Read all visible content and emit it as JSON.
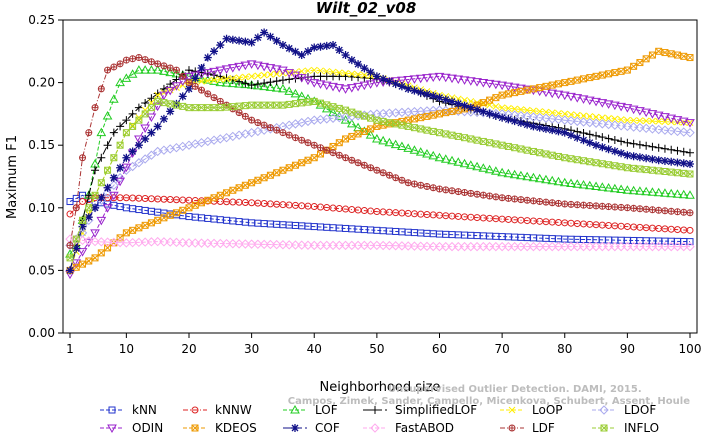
{
  "chart_data": {
    "type": "line",
    "title": "Wilt_02_v08",
    "xlabel": "Neighborhood size",
    "ylabel": "Maximum F1",
    "xlim": [
      1,
      100
    ],
    "ylim": [
      0,
      0.25
    ],
    "x_ticks": [
      "1",
      "10",
      "20",
      "30",
      "40",
      "50",
      "60",
      "70",
      "80",
      "90",
      "100"
    ],
    "y_ticks": [
      "0.00",
      "0.05",
      "0.10",
      "0.15",
      "0.20",
      "0.25"
    ],
    "legend_position": "bottom",
    "watermark": [
      "Unsupervised Outlier Detection. DAMI, 2015.",
      "Campos, Zimek, Sander, Campello, Micenkova, Schubert, Assent, Houle"
    ],
    "series": [
      {
        "name": "kNN",
        "color": "#2233cc",
        "marker": "square",
        "line": "dash",
        "x": [
          1,
          3,
          5,
          10,
          20,
          30,
          40,
          50,
          60,
          70,
          80,
          90,
          100
        ],
        "values": [
          0.105,
          0.11,
          0.105,
          0.1,
          0.093,
          0.088,
          0.085,
          0.082,
          0.079,
          0.077,
          0.075,
          0.074,
          0.073
        ]
      },
      {
        "name": "kNNW",
        "color": "#dd2222",
        "marker": "circle",
        "line": "dashdot",
        "x": [
          1,
          3,
          5,
          10,
          20,
          30,
          40,
          50,
          60,
          70,
          80,
          90,
          100
        ],
        "values": [
          0.095,
          0.105,
          0.108,
          0.108,
          0.106,
          0.104,
          0.101,
          0.097,
          0.094,
          0.091,
          0.088,
          0.085,
          0.082
        ]
      },
      {
        "name": "LOF",
        "color": "#22cc22",
        "marker": "triangle",
        "line": "dash",
        "x": [
          1,
          2,
          4,
          6,
          9,
          12,
          15,
          20,
          25,
          30,
          35,
          40,
          45,
          50,
          60,
          70,
          80,
          90,
          100
        ],
        "values": [
          0.063,
          0.07,
          0.11,
          0.16,
          0.2,
          0.21,
          0.21,
          0.205,
          0.2,
          0.198,
          0.195,
          0.185,
          0.17,
          0.155,
          0.14,
          0.128,
          0.12,
          0.114,
          0.11
        ]
      },
      {
        "name": "SimplifiedLOF",
        "color": "#000000",
        "marker": "plus",
        "line": "longdash",
        "x": [
          1,
          3,
          5,
          8,
          12,
          16,
          20,
          25,
          30,
          35,
          40,
          45,
          50,
          55,
          60,
          70,
          80,
          90,
          100
        ],
        "values": [
          0.05,
          0.09,
          0.13,
          0.16,
          0.18,
          0.195,
          0.21,
          0.205,
          0.198,
          0.202,
          0.205,
          0.205,
          0.203,
          0.196,
          0.185,
          0.172,
          0.163,
          0.152,
          0.144
        ]
      },
      {
        "name": "LoOP",
        "color": "#ffee00",
        "marker": "x",
        "line": "dash",
        "x": [
          1,
          3,
          5,
          10,
          15,
          20,
          30,
          40,
          50,
          60,
          70,
          80,
          90,
          100
        ],
        "values": [
          0.05,
          0.08,
          0.11,
          0.16,
          0.19,
          0.2,
          0.205,
          0.21,
          0.205,
          0.19,
          0.18,
          0.175,
          0.17,
          0.168
        ]
      },
      {
        "name": "LDOF",
        "color": "#aaaaee",
        "marker": "diamond",
        "line": "dash",
        "x": [
          1,
          3,
          5,
          10,
          15,
          20,
          25,
          30,
          35,
          40,
          50,
          60,
          70,
          80,
          90,
          100
        ],
        "values": [
          0.07,
          0.08,
          0.1,
          0.13,
          0.145,
          0.15,
          0.155,
          0.16,
          0.165,
          0.17,
          0.175,
          0.178,
          0.175,
          0.17,
          0.165,
          0.16
        ]
      },
      {
        "name": "ODIN",
        "color": "#9922cc",
        "marker": "triangledown",
        "line": "dash",
        "x": [
          1,
          3,
          5,
          8,
          12,
          16,
          20,
          25,
          30,
          35,
          40,
          45,
          50,
          60,
          70,
          80,
          90,
          100
        ],
        "values": [
          0.047,
          0.065,
          0.08,
          0.11,
          0.155,
          0.19,
          0.205,
          0.21,
          0.215,
          0.21,
          0.2,
          0.195,
          0.2,
          0.205,
          0.198,
          0.19,
          0.18,
          0.168
        ]
      },
      {
        "name": "KDEOS",
        "color": "#ee9900",
        "marker": "squarex",
        "line": "dash",
        "x": [
          1,
          3,
          5,
          10,
          15,
          20,
          25,
          30,
          35,
          40,
          45,
          50,
          55,
          60,
          65,
          70,
          75,
          80,
          85,
          90,
          95,
          100
        ],
        "values": [
          0.05,
          0.055,
          0.06,
          0.08,
          0.09,
          0.1,
          0.11,
          0.12,
          0.13,
          0.14,
          0.155,
          0.165,
          0.17,
          0.175,
          0.18,
          0.19,
          0.195,
          0.2,
          0.205,
          0.21,
          0.225,
          0.22
        ]
      },
      {
        "name": "COF",
        "color": "#111188",
        "marker": "asterisk",
        "line": "longdash",
        "x": [
          1,
          3,
          5,
          10,
          15,
          20,
          23,
          26,
          30,
          32,
          35,
          38,
          40,
          43,
          46,
          50,
          55,
          60,
          65,
          70,
          75,
          80,
          85,
          90,
          95,
          100
        ],
        "values": [
          0.05,
          0.085,
          0.1,
          0.14,
          0.165,
          0.195,
          0.22,
          0.235,
          0.232,
          0.24,
          0.23,
          0.222,
          0.228,
          0.23,
          0.218,
          0.205,
          0.195,
          0.188,
          0.18,
          0.172,
          0.165,
          0.16,
          0.15,
          0.142,
          0.138,
          0.135
        ]
      },
      {
        "name": "FastABOD",
        "color": "#ffaaee",
        "marker": "diamond",
        "line": "dash",
        "x": [
          1,
          5,
          10,
          15,
          20,
          30,
          40,
          50,
          60,
          70,
          80,
          90,
          100
        ],
        "values": [
          0.075,
          0.073,
          0.072,
          0.073,
          0.072,
          0.071,
          0.07,
          0.07,
          0.069,
          0.069,
          0.069,
          0.069,
          0.069
        ]
      },
      {
        "name": "LDF",
        "color": "#aa3333",
        "marker": "circleplus",
        "line": "dashdot",
        "x": [
          1,
          2,
          3,
          4,
          5,
          7,
          9,
          10,
          12,
          15,
          18,
          20,
          25,
          30,
          35,
          40,
          45,
          50,
          55,
          60,
          70,
          80,
          90,
          100
        ],
        "values": [
          0.07,
          0.1,
          0.14,
          0.16,
          0.18,
          0.21,
          0.215,
          0.218,
          0.22,
          0.215,
          0.21,
          0.2,
          0.185,
          0.17,
          0.16,
          0.15,
          0.14,
          0.13,
          0.12,
          0.115,
          0.108,
          0.103,
          0.1,
          0.096
        ]
      },
      {
        "name": "INFLO",
        "color": "#99cc33",
        "marker": "xsquare",
        "line": "dash",
        "x": [
          1,
          3,
          5,
          8,
          10,
          15,
          20,
          25,
          30,
          35,
          40,
          45,
          50,
          55,
          60,
          70,
          80,
          90,
          100
        ],
        "values": [
          0.06,
          0.09,
          0.11,
          0.14,
          0.16,
          0.185,
          0.18,
          0.18,
          0.182,
          0.182,
          0.185,
          0.178,
          0.17,
          0.165,
          0.16,
          0.15,
          0.14,
          0.132,
          0.127
        ]
      }
    ]
  }
}
